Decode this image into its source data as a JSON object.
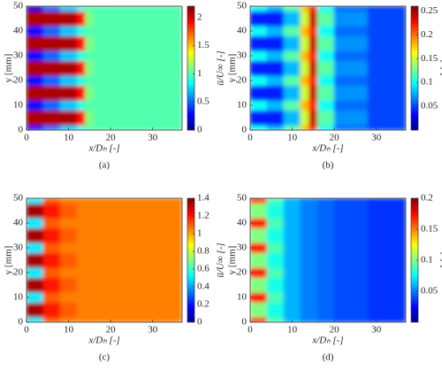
{
  "chart_data": [
    {
      "type": "heatmap",
      "caption": "(a)",
      "xlabel": "x/Dₕ [-]",
      "ylabel": "y [mm]",
      "colorbar_label": "ū/U∞ [-]",
      "xlim": [
        0,
        37
      ],
      "ylim": [
        0,
        50
      ],
      "xticks": [
        0,
        10,
        20,
        30
      ],
      "yticks": [
        0,
        10,
        20,
        30,
        40,
        50
      ],
      "clim": [
        0,
        2.2
      ],
      "cticks": [
        0,
        0.5,
        1,
        1.5,
        2
      ],
      "xbins": [
        0,
        4,
        8,
        12,
        14,
        16,
        20,
        28,
        37
      ],
      "ybins": [
        0,
        2,
        8,
        12,
        18,
        22,
        28,
        32,
        38,
        42,
        48,
        50
      ],
      "z": [
        [
          0.3,
          0.5,
          0.7,
          0.9,
          1.0,
          1.0,
          1.0,
          1.0
        ],
        [
          2.1,
          2.1,
          2.1,
          1.9,
          1.1,
          1.0,
          1.0,
          1.0
        ],
        [
          0.3,
          0.5,
          0.7,
          0.9,
          1.0,
          1.0,
          1.0,
          1.0
        ],
        [
          2.1,
          2.1,
          2.1,
          1.9,
          1.1,
          1.0,
          1.0,
          1.0
        ],
        [
          0.3,
          0.5,
          0.7,
          0.9,
          1.0,
          1.0,
          1.0,
          1.0
        ],
        [
          2.1,
          2.1,
          2.1,
          1.9,
          1.1,
          1.0,
          1.0,
          1.0
        ],
        [
          0.3,
          0.5,
          0.7,
          0.9,
          1.0,
          1.0,
          1.0,
          1.0
        ],
        [
          2.1,
          2.1,
          2.1,
          1.9,
          1.1,
          1.0,
          1.0,
          1.0
        ],
        [
          0.3,
          0.5,
          0.7,
          0.9,
          1.0,
          1.0,
          1.0,
          1.0
        ],
        [
          2.1,
          2.1,
          2.1,
          1.9,
          1.1,
          1.0,
          1.0,
          1.0
        ],
        [
          0.2,
          0.5,
          0.7,
          0.9,
          1.0,
          1.0,
          1.0,
          1.0
        ]
      ]
    },
    {
      "type": "heatmap",
      "caption": "(b)",
      "xlabel": "x/Dₕ [-]",
      "ylabel": "y [mm]",
      "colorbar_label": "I [-]",
      "xlim": [
        0,
        37
      ],
      "ylim": [
        0,
        50
      ],
      "xticks": [
        0,
        10,
        20,
        30
      ],
      "yticks": [
        0,
        10,
        20,
        30,
        40,
        50
      ],
      "clim": [
        0,
        0.26
      ],
      "cticks": [
        0.05,
        0.1,
        0.15,
        0.2,
        0.25
      ],
      "xbins": [
        0,
        4,
        8,
        12,
        14,
        16,
        20,
        28,
        37
      ],
      "ybins": [
        0,
        2,
        8,
        12,
        18,
        22,
        28,
        32,
        38,
        42,
        48,
        50
      ],
      "z": [
        [
          0.1,
          0.08,
          0.12,
          0.18,
          0.22,
          0.1,
          0.06,
          0.05
        ],
        [
          0.04,
          0.04,
          0.08,
          0.15,
          0.24,
          0.12,
          0.07,
          0.05
        ],
        [
          0.1,
          0.08,
          0.12,
          0.18,
          0.22,
          0.1,
          0.06,
          0.05
        ],
        [
          0.04,
          0.04,
          0.08,
          0.15,
          0.24,
          0.12,
          0.07,
          0.05
        ],
        [
          0.1,
          0.08,
          0.12,
          0.18,
          0.22,
          0.1,
          0.06,
          0.05
        ],
        [
          0.04,
          0.04,
          0.08,
          0.15,
          0.24,
          0.12,
          0.07,
          0.05
        ],
        [
          0.1,
          0.08,
          0.12,
          0.18,
          0.22,
          0.1,
          0.06,
          0.05
        ],
        [
          0.04,
          0.04,
          0.08,
          0.15,
          0.24,
          0.12,
          0.07,
          0.05
        ],
        [
          0.1,
          0.08,
          0.12,
          0.18,
          0.22,
          0.1,
          0.06,
          0.05
        ],
        [
          0.04,
          0.04,
          0.08,
          0.15,
          0.24,
          0.12,
          0.07,
          0.05
        ],
        [
          0.1,
          0.08,
          0.12,
          0.18,
          0.22,
          0.1,
          0.06,
          0.05
        ]
      ]
    },
    {
      "type": "heatmap",
      "caption": "(c)",
      "xlabel": "x/Dₕ [-]",
      "ylabel": "y [mm]",
      "colorbar_label": "ū/U∞ [-]",
      "xlim": [
        0,
        37
      ],
      "ylim": [
        0,
        50
      ],
      "xticks": [
        0,
        10,
        20,
        30
      ],
      "yticks": [
        0,
        10,
        20,
        30,
        40,
        50
      ],
      "clim": [
        0,
        1.4
      ],
      "cticks": [
        0,
        0.2,
        0.4,
        0.6,
        0.8,
        1,
        1.2,
        1.4
      ],
      "xbins": [
        0,
        4,
        8,
        12,
        14,
        16,
        20,
        28,
        37
      ],
      "ybins": [
        0,
        2,
        8,
        12,
        18,
        22,
        28,
        32,
        38,
        42,
        48,
        50
      ],
      "z": [
        [
          0.5,
          1.1,
          1.05,
          1.05,
          1.05,
          1.05,
          1.05,
          1.05
        ],
        [
          1.35,
          1.2,
          1.1,
          1.05,
          1.05,
          1.05,
          1.05,
          1.05
        ],
        [
          0.5,
          1.1,
          1.05,
          1.05,
          1.05,
          1.05,
          1.05,
          1.05
        ],
        [
          1.35,
          1.2,
          1.1,
          1.05,
          1.05,
          1.05,
          1.05,
          1.05
        ],
        [
          0.5,
          1.1,
          1.05,
          1.05,
          1.05,
          1.05,
          1.05,
          1.05
        ],
        [
          1.35,
          1.2,
          1.1,
          1.05,
          1.05,
          1.05,
          1.05,
          1.05
        ],
        [
          0.5,
          1.1,
          1.05,
          1.05,
          1.05,
          1.05,
          1.05,
          1.05
        ],
        [
          1.35,
          1.2,
          1.1,
          1.05,
          1.05,
          1.05,
          1.05,
          1.05
        ],
        [
          0.5,
          1.1,
          1.05,
          1.05,
          1.05,
          1.05,
          1.05,
          1.05
        ],
        [
          1.35,
          1.2,
          1.1,
          1.05,
          1.05,
          1.05,
          1.05,
          1.05
        ],
        [
          0.5,
          1.1,
          1.05,
          1.05,
          1.05,
          1.05,
          1.05,
          1.05
        ]
      ]
    },
    {
      "type": "heatmap",
      "caption": "(d)",
      "xlabel": "x/Dₕ [-]",
      "ylabel": "y [mm]",
      "colorbar_label": "I [-]",
      "xlim": [
        0,
        37
      ],
      "ylim": [
        0,
        50
      ],
      "xticks": [
        0,
        10,
        20,
        30
      ],
      "yticks": [
        0,
        10,
        20,
        30,
        40,
        50
      ],
      "clim": [
        0,
        0.2
      ],
      "cticks": [
        0.05,
        0.1,
        0.15,
        0.2
      ],
      "xbins": [
        0,
        4,
        8,
        12,
        14,
        16,
        20,
        28,
        37
      ],
      "ybins": [
        0,
        2,
        8,
        12,
        18,
        22,
        28,
        32,
        38,
        42,
        48,
        50
      ],
      "z": [
        [
          0.17,
          0.09,
          0.06,
          0.05,
          0.05,
          0.045,
          0.04,
          0.035
        ],
        [
          0.1,
          0.08,
          0.06,
          0.05,
          0.05,
          0.045,
          0.04,
          0.035
        ],
        [
          0.17,
          0.09,
          0.06,
          0.05,
          0.05,
          0.045,
          0.04,
          0.035
        ],
        [
          0.1,
          0.08,
          0.06,
          0.05,
          0.05,
          0.045,
          0.04,
          0.035
        ],
        [
          0.17,
          0.09,
          0.06,
          0.05,
          0.05,
          0.045,
          0.04,
          0.035
        ],
        [
          0.1,
          0.08,
          0.06,
          0.05,
          0.05,
          0.045,
          0.04,
          0.035
        ],
        [
          0.17,
          0.09,
          0.06,
          0.05,
          0.05,
          0.045,
          0.04,
          0.035
        ],
        [
          0.1,
          0.08,
          0.06,
          0.05,
          0.05,
          0.045,
          0.04,
          0.035
        ],
        [
          0.17,
          0.09,
          0.06,
          0.05,
          0.05,
          0.045,
          0.04,
          0.035
        ],
        [
          0.1,
          0.08,
          0.06,
          0.05,
          0.05,
          0.045,
          0.04,
          0.035
        ],
        [
          0.17,
          0.09,
          0.06,
          0.05,
          0.05,
          0.045,
          0.04,
          0.035
        ]
      ]
    }
  ]
}
